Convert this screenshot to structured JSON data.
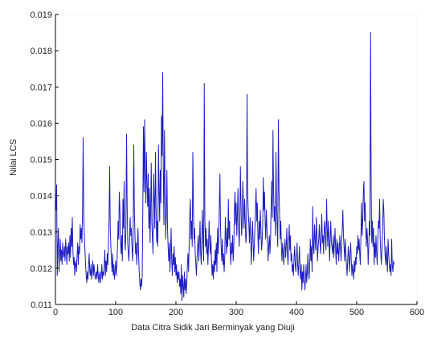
{
  "chart_data": {
    "type": "line",
    "xlabel": "Data Citra Sidik Jari Berminyak yang Diuji",
    "ylabel": "Nilai LCS",
    "xlim": [
      0,
      600
    ],
    "ylim": [
      0.011,
      0.019
    ],
    "x_ticks": [
      0,
      100,
      200,
      300,
      400,
      500,
      600
    ],
    "y_ticks": [
      0.011,
      0.012,
      0.013,
      0.014,
      0.015,
      0.016,
      0.017,
      0.018,
      0.019
    ],
    "x_tick_labels": [
      "0",
      "100",
      "200",
      "300",
      "400",
      "500",
      "600"
    ],
    "y_tick_labels": [
      "0.011",
      "0.012",
      "0.013",
      "0.014",
      "0.015",
      "0.016",
      "0.017",
      "0.018",
      "0.019"
    ],
    "grid": false,
    "line_color": "#1f1fbf",
    "series_x_start": 1,
    "series_x_step": 1,
    "series": [
      {
        "values": [
          0.0136,
          0.0143,
          0.0118,
          0.0126,
          0.0131,
          0.0119,
          0.0124,
          0.0128,
          0.0122,
          0.0125,
          0.0121,
          0.0127,
          0.0124,
          0.0123,
          0.0126,
          0.0122,
          0.0128,
          0.0125,
          0.0121,
          0.0126,
          0.0124,
          0.0127,
          0.0122,
          0.0129,
          0.0123,
          0.0131,
          0.0126,
          0.0134,
          0.0125,
          0.0121,
          0.0123,
          0.0118,
          0.0122,
          0.0121,
          0.0119,
          0.0124,
          0.0127,
          0.0121,
          0.0126,
          0.0124,
          0.0132,
          0.0128,
          0.0131,
          0.0127,
          0.0136,
          0.0156,
          0.0134,
          0.0129,
          0.0125,
          0.0121,
          0.0118,
          0.0116,
          0.0119,
          0.0117,
          0.0121,
          0.0124,
          0.0119,
          0.0118,
          0.0121,
          0.0117,
          0.0119,
          0.0122,
          0.0118,
          0.0121,
          0.0119,
          0.0117,
          0.0118,
          0.0119,
          0.0117,
          0.0121,
          0.0118,
          0.0116,
          0.0118,
          0.0119,
          0.0116,
          0.0118,
          0.0121,
          0.0117,
          0.0119,
          0.0118,
          0.0121,
          0.0125,
          0.0118,
          0.0122,
          0.0119,
          0.0124,
          0.0121,
          0.0127,
          0.0134,
          0.0148,
          0.0131,
          0.0126,
          0.0122,
          0.0119,
          0.0124,
          0.0118,
          0.0121,
          0.0117,
          0.0119,
          0.0122,
          0.0118,
          0.0121,
          0.0126,
          0.0133,
          0.0128,
          0.0141,
          0.0136,
          0.0127,
          0.0124,
          0.0129,
          0.0122,
          0.0139,
          0.0131,
          0.0144,
          0.0128,
          0.0125,
          0.0131,
          0.0157,
          0.0138,
          0.0127,
          0.0124,
          0.0122,
          0.0128,
          0.0134,
          0.0129,
          0.0131,
          0.0126,
          0.0122,
          0.0128,
          0.0154,
          0.0136,
          0.0129,
          0.0124,
          0.0127,
          0.0121,
          0.0125,
          0.0131,
          0.0124,
          0.0119,
          0.0116,
          0.0114,
          0.0117,
          0.0115,
          0.0118,
          0.0136,
          0.0159,
          0.0141,
          0.0161,
          0.0147,
          0.0138,
          0.0152,
          0.0143,
          0.0137,
          0.0146,
          0.0131,
          0.0142,
          0.0127,
          0.0136,
          0.0149,
          0.0133,
          0.0128,
          0.0124,
          0.0146,
          0.0139,
          0.0131,
          0.0152,
          0.0138,
          0.0127,
          0.0133,
          0.0126,
          0.0154,
          0.0142,
          0.0133,
          0.0147,
          0.0138,
          0.0162,
          0.0151,
          0.0174,
          0.0147,
          0.0132,
          0.0158,
          0.0141,
          0.0128,
          0.0135,
          0.0147,
          0.0131,
          0.0126,
          0.0122,
          0.0127,
          0.0119,
          0.0124,
          0.0131,
          0.0122,
          0.0118,
          0.0124,
          0.0121,
          0.0126,
          0.0119,
          0.0123,
          0.0118,
          0.0121,
          0.0116,
          0.0119,
          0.0117,
          0.0119,
          0.0115,
          0.0117,
          0.0113,
          0.0121,
          0.0111,
          0.0118,
          0.0115,
          0.0112,
          0.0119,
          0.0114,
          0.0117,
          0.0113,
          0.0116,
          0.0121,
          0.0124,
          0.0119,
          0.0127,
          0.0135,
          0.0139,
          0.0128,
          0.0133,
          0.0126,
          0.0152,
          0.0137,
          0.0128,
          0.0131,
          0.0124,
          0.0121,
          0.0118,
          0.0123,
          0.0126,
          0.0129,
          0.0122,
          0.0127,
          0.0133,
          0.0124,
          0.0121,
          0.0129,
          0.0136,
          0.0127,
          0.0122,
          0.0171,
          0.0134,
          0.0126,
          0.0131,
          0.0124,
          0.0128,
          0.0121,
          0.0126,
          0.0133,
          0.0127,
          0.0124,
          0.0129,
          0.0122,
          0.0118,
          0.0121,
          0.0117,
          0.0122,
          0.0119,
          0.0125,
          0.0121,
          0.0127,
          0.0119,
          0.0131,
          0.0124,
          0.0128,
          0.0137,
          0.0146,
          0.0131,
          0.0126,
          0.0122,
          0.0128,
          0.0121,
          0.0124,
          0.0119,
          0.0123,
          0.0134,
          0.0128,
          0.0124,
          0.0131,
          0.0126,
          0.0139,
          0.0128,
          0.0133,
          0.0125,
          0.0121,
          0.0127,
          0.0124,
          0.0129,
          0.0122,
          0.0126,
          0.0136,
          0.0141,
          0.0132,
          0.0138,
          0.0129,
          0.0135,
          0.0142,
          0.0131,
          0.0126,
          0.0133,
          0.0148,
          0.0137,
          0.0129,
          0.0132,
          0.0144,
          0.0137,
          0.0131,
          0.0139,
          0.0133,
          0.0127,
          0.0129,
          0.0168,
          0.0141,
          0.0136,
          0.0132,
          0.0127,
          0.0134,
          0.0129,
          0.0121,
          0.0126,
          0.0133,
          0.0128,
          0.0122,
          0.0126,
          0.0131,
          0.0137,
          0.0142,
          0.0133,
          0.0138,
          0.0129,
          0.0124,
          0.0133,
          0.0128,
          0.0136,
          0.0131,
          0.0125,
          0.0127,
          0.0132,
          0.0145,
          0.0136,
          0.0141,
          0.0133,
          0.0128,
          0.0136,
          0.0131,
          0.0127,
          0.0122,
          0.0126,
          0.0129,
          0.0124,
          0.0128,
          0.0137,
          0.0144,
          0.0134,
          0.0158,
          0.0142,
          0.0133,
          0.0137,
          0.0129,
          0.0152,
          0.0138,
          0.0131,
          0.0126,
          0.0161,
          0.0142,
          0.0135,
          0.0128,
          0.0133,
          0.0126,
          0.0122,
          0.0127,
          0.0124,
          0.0121,
          0.0125,
          0.0128,
          0.0123,
          0.0126,
          0.0131,
          0.0124,
          0.0121,
          0.0127,
          0.0132,
          0.0125,
          0.0129,
          0.0122,
          0.0124,
          0.0119,
          0.0121,
          0.0118,
          0.0123,
          0.0126,
          0.0121,
          0.0119,
          0.0123,
          0.0127,
          0.0121,
          0.0118,
          0.0122,
          0.0126,
          0.0119,
          0.0117,
          0.0121,
          0.0114,
          0.0119,
          0.0116,
          0.0121,
          0.0118,
          0.0114,
          0.0117,
          0.0121,
          0.0116,
          0.0119,
          0.0124,
          0.0119,
          0.0117,
          0.0121,
          0.0128,
          0.0122,
          0.0126,
          0.0119,
          0.0137,
          0.0126,
          0.0124,
          0.0132,
          0.0128,
          0.0125,
          0.0134,
          0.0129,
          0.0122,
          0.0126,
          0.0128,
          0.0132,
          0.0127,
          0.0124,
          0.0129,
          0.0135,
          0.0127,
          0.0129,
          0.0124,
          0.0131,
          0.0133,
          0.0128,
          0.0125,
          0.0139,
          0.0131,
          0.0126,
          0.0133,
          0.0128,
          0.0122,
          0.0128,
          0.0133,
          0.0127,
          0.0126,
          0.0124,
          0.0129,
          0.0123,
          0.0127,
          0.0131,
          0.0125,
          0.0121,
          0.0128,
          0.0124,
          0.0127,
          0.0122,
          0.0125,
          0.0129,
          0.0126,
          0.0122,
          0.0127,
          0.0131,
          0.0136,
          0.0129,
          0.0126,
          0.0122,
          0.0128,
          0.0124,
          0.0121,
          0.0118,
          0.0122,
          0.0126,
          0.0123,
          0.0119,
          0.0124,
          0.0127,
          0.0122,
          0.0118,
          0.0121,
          0.0119,
          0.0117,
          0.0122,
          0.0119,
          0.0123,
          0.0121,
          0.0126,
          0.0124,
          0.0129,
          0.0125,
          0.0128,
          0.0124,
          0.0121,
          0.0129,
          0.0138,
          0.0129,
          0.0133,
          0.0141,
          0.0144,
          0.0133,
          0.0138,
          0.0131,
          0.0126,
          0.0131,
          0.0128,
          0.0121,
          0.0126,
          0.0133,
          0.0129,
          0.0185,
          0.0141,
          0.0127,
          0.0133,
          0.0126,
          0.0131,
          0.0121,
          0.0127,
          0.0123,
          0.0129,
          0.0124,
          0.0121,
          0.0128,
          0.0133,
          0.0131,
          0.0139,
          0.0128,
          0.0124,
          0.0121,
          0.0126,
          0.0131,
          0.0139,
          0.0136,
          0.0128,
          0.0124,
          0.0121,
          0.0126,
          0.0122,
          0.0119,
          0.0128,
          0.0124,
          0.0121,
          0.0119,
          0.0121,
          0.0118,
          0.0128,
          0.0121,
          0.0119,
          0.0122,
          0.0121
        ]
      }
    ]
  }
}
